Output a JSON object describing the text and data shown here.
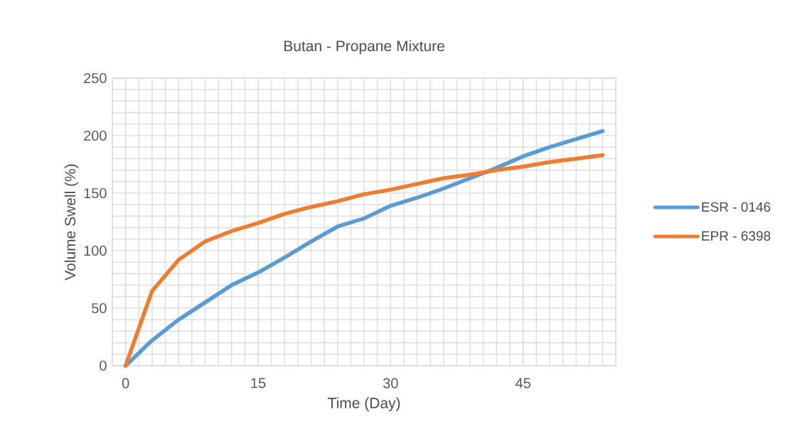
{
  "chart_data": {
    "type": "line",
    "title": "Butan - Propane Mixture",
    "xlabel": "Time (Day)",
    "ylabel": "Volume Swell (%)",
    "x": [
      0,
      3,
      6,
      9,
      12,
      15,
      18,
      21,
      24,
      27,
      30,
      33,
      36,
      39,
      42,
      45,
      48,
      51,
      54
    ],
    "series": [
      {
        "name": "ESR - 0146",
        "color": "#5b9bd5",
        "values": [
          0,
          22,
          40,
          55,
          70,
          81,
          94,
          108,
          121,
          128,
          139,
          146,
          154,
          163,
          172,
          182,
          190,
          197,
          204
        ]
      },
      {
        "name": "EPR - 6398",
        "color": "#ed7d31",
        "values": [
          0,
          65,
          92,
          108,
          117,
          124,
          132,
          138,
          143,
          149,
          153,
          158,
          163,
          166,
          170,
          173,
          177,
          180,
          183
        ]
      }
    ],
    "xlim": [
      -1.5,
      55.5
    ],
    "xticks": [
      0,
      15,
      30,
      45
    ],
    "ylim": [
      0,
      250
    ],
    "yticks": [
      0,
      50,
      100,
      150,
      200,
      250
    ],
    "grid": true,
    "legend": "right",
    "marker": "none",
    "line_style": "solid"
  }
}
